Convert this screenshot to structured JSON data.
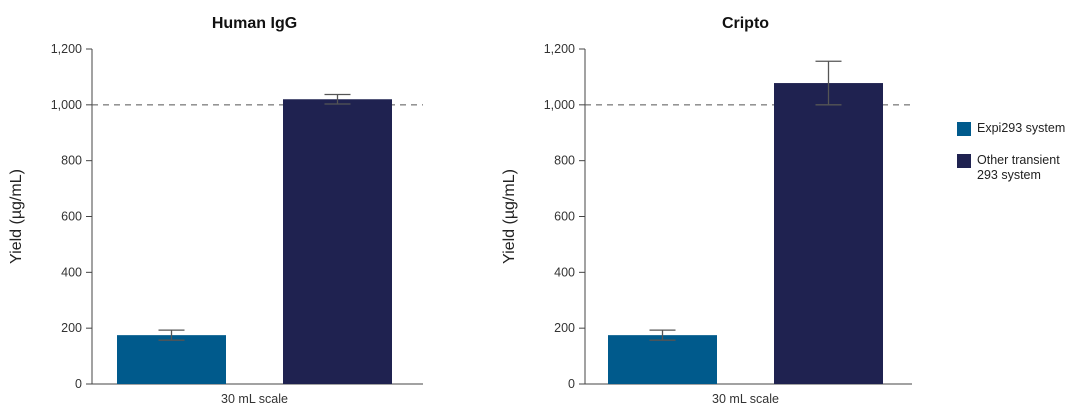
{
  "colors": {
    "expi": "#005a8c",
    "other": "#1f2250",
    "axis": "#444444",
    "reference": "#555555",
    "error": "#555555"
  },
  "legend": {
    "items": [
      {
        "label": "Expi293 system",
        "color": "#005a8c"
      },
      {
        "label": "Other transient\n293 system",
        "color": "#1f2250"
      }
    ]
  },
  "chart_data": [
    {
      "type": "bar",
      "title": "Human IgG",
      "xlabel": "30 mL scale",
      "ylabel": "Yield (µg/mL)",
      "ylim": [
        0,
        1200
      ],
      "yticks": [
        0,
        200,
        400,
        600,
        800,
        1000,
        1200
      ],
      "ytick_labels": [
        "0",
        "200",
        "400",
        "600",
        "800",
        "1,000",
        "1,200"
      ],
      "reference_line": 1000,
      "grid": false,
      "series": [
        {
          "name": "Expi293 system",
          "values": [
            175
          ],
          "error": [
            18
          ],
          "color": "#005a8c"
        },
        {
          "name": "Other transient 293 system",
          "values": [
            1020
          ],
          "error": [
            17
          ],
          "color": "#1f2250"
        }
      ]
    },
    {
      "type": "bar",
      "title": "Cripto",
      "xlabel": "30 mL scale",
      "ylabel": "Yield (µg/mL)",
      "ylim": [
        0,
        1200
      ],
      "yticks": [
        0,
        200,
        400,
        600,
        800,
        1000,
        1200
      ],
      "ytick_labels": [
        "0",
        "200",
        "400",
        "600",
        "800",
        "1,000",
        "1,200"
      ],
      "reference_line": 1000,
      "grid": false,
      "series": [
        {
          "name": "Expi293 system",
          "values": [
            175
          ],
          "error": [
            18
          ],
          "color": "#005a8c"
        },
        {
          "name": "Other transient 293 system",
          "values": [
            1078
          ],
          "error": [
            78
          ],
          "color": "#1f2250"
        }
      ]
    }
  ]
}
